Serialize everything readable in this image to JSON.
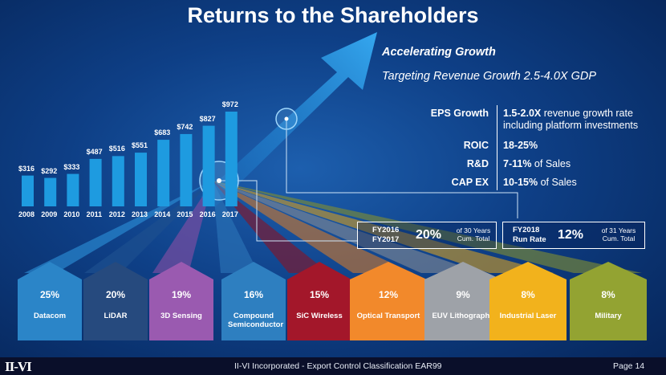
{
  "slide": {
    "title": "Returns to the Shareholders",
    "headline": "Accelerating Growth",
    "subline": "Targeting Revenue Growth 2.5-4.0X GDP"
  },
  "metrics": [
    {
      "label": "EPS Growth",
      "value_bold": "1.5-2.0X",
      "value_rest": " revenue growth rate",
      "value_line2": "including platform investments"
    },
    {
      "label": "ROIC",
      "value_bold": "18-25%",
      "value_rest": "",
      "value_line2": ""
    },
    {
      "label": "R&D",
      "value_bold": "7-11%",
      "value_rest": " of Sales",
      "value_line2": ""
    },
    {
      "label": "CAP EX",
      "value_bold": "10-15%",
      "value_rest": " of Sales",
      "value_line2": ""
    }
  ],
  "chart_data": {
    "type": "bar",
    "categories": [
      "2008",
      "2009",
      "2010",
      "2011",
      "2012",
      "2013",
      "2014",
      "2015",
      "2016",
      "2017"
    ],
    "values": [
      316,
      292,
      333,
      487,
      516,
      551,
      683,
      742,
      827,
      972
    ],
    "labels": [
      "$316",
      "$292",
      "$333",
      "$487",
      "$516",
      "$551",
      "$683",
      "$742",
      "$827",
      "$972"
    ],
    "title": "",
    "xlabel": "",
    "ylabel": "",
    "ylim": [
      0,
      1000
    ],
    "grid": false,
    "color": "#1e9be0"
  },
  "boxes": [
    {
      "label1": "FY2016",
      "label2": "FY2017",
      "pct": "20%",
      "note1": "of 30 Years",
      "note2": "Cum. Total"
    },
    {
      "label1": "FY2018",
      "label2": "Run Rate",
      "pct": "12%",
      "note1": "of 31 Years",
      "note2": "Cum. Total"
    }
  ],
  "segments": [
    {
      "pct": "25%",
      "name": "Datacom",
      "color": "#2b85c8"
    },
    {
      "pct": "20%",
      "name": "LiDAR",
      "color": "#264a7e"
    },
    {
      "pct": "19%",
      "name": "3D Sensing",
      "color": "#9a5ab0"
    },
    {
      "pct": "16%",
      "name": "Compound Semiconductor",
      "color": "#2e7fc0"
    },
    {
      "pct": "15%",
      "name": "SiC Wireless",
      "color": "#a3172a"
    },
    {
      "pct": "12%",
      "name": "Optical Transport",
      "color": "#f2892b"
    },
    {
      "pct": "9%",
      "name": "EUV Lithography",
      "color": "#9ea2a8"
    },
    {
      "pct": "8%",
      "name": "Industrial Laser",
      "color": "#f2b21c"
    },
    {
      "pct": "8%",
      "name": "Military",
      "color": "#93a332"
    }
  ],
  "footer": {
    "logo": "II-VI",
    "text": "II-VI Incorporated - Export Control Classification EAR99",
    "page": "Page 14"
  }
}
